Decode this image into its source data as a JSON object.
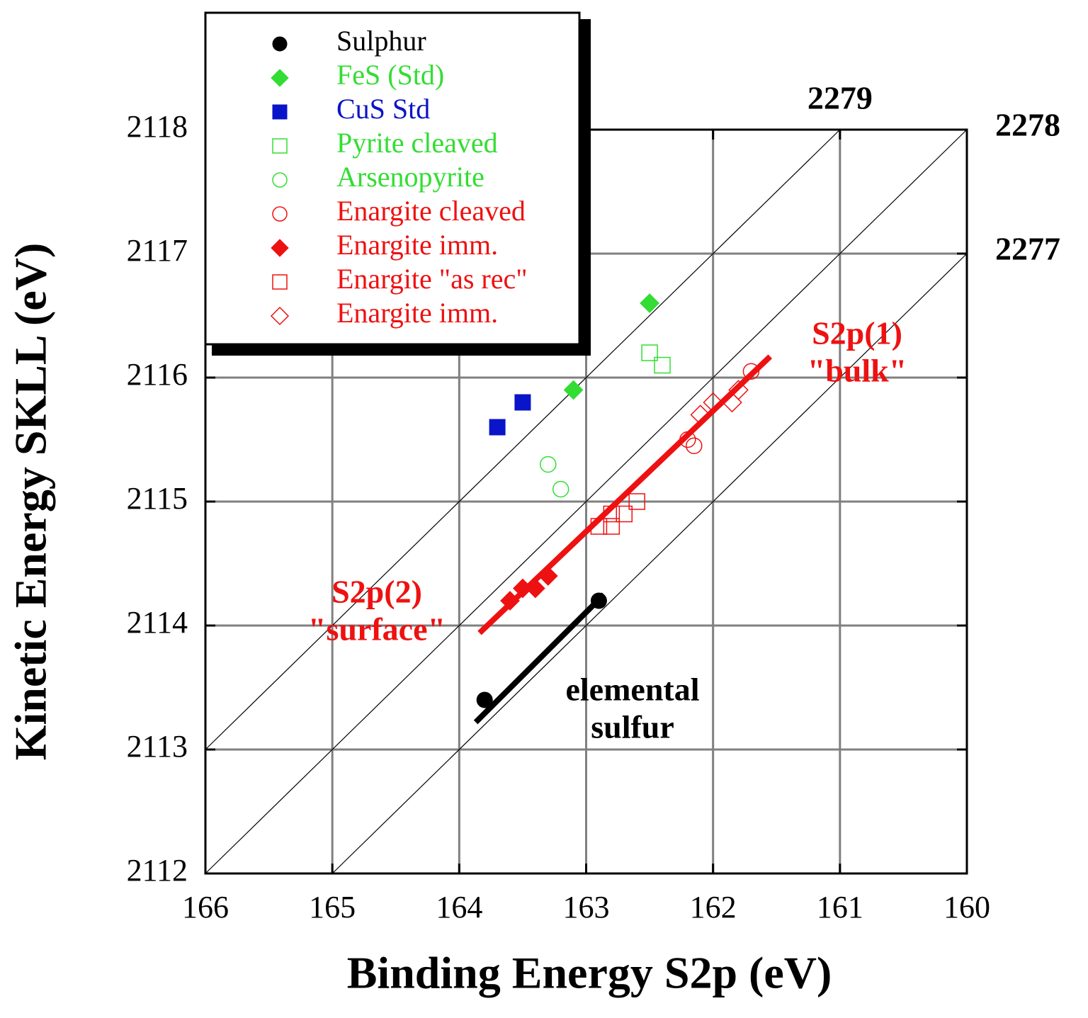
{
  "chart_data": {
    "type": "scatter",
    "x_label": "Binding Energy S2p (eV)",
    "y_label": "Kinetic Energy SKLL (eV)",
    "xlim": [
      166,
      160
    ],
    "ylim": [
      2112,
      2118
    ],
    "xticks": [
      166,
      165,
      164,
      163,
      162,
      161,
      160
    ],
    "yticks": [
      2112,
      2113,
      2114,
      2115,
      2116,
      2117,
      2118
    ],
    "grid": true,
    "legend": "upper left",
    "auger_parameter_lines": [
      2279,
      2278,
      2277
    ],
    "series": [
      {
        "name": "Sulphur",
        "color": "#000000",
        "marker": "circle",
        "filled": true,
        "x": [
          163.8,
          162.9
        ],
        "y": [
          2113.4,
          2114.2
        ]
      },
      {
        "name": "FeS (Std)",
        "color": "#33dd33",
        "marker": "diamond",
        "filled": true,
        "x": [
          162.5,
          163.1
        ],
        "y": [
          2116.6,
          2115.9
        ]
      },
      {
        "name": "CuS Std",
        "color": "#0a14c8",
        "marker": "square",
        "filled": true,
        "x": [
          163.7,
          163.5
        ],
        "y": [
          2115.6,
          2115.8
        ]
      },
      {
        "name": "Pyrite cleaved",
        "color": "#33dd33",
        "marker": "square",
        "filled": false,
        "x": [
          162.5,
          162.4
        ],
        "y": [
          2116.2,
          2116.1
        ]
      },
      {
        "name": "Arsenopyrite",
        "color": "#33dd33",
        "marker": "circle",
        "filled": false,
        "x": [
          163.3,
          163.2
        ],
        "y": [
          2115.3,
          2115.1
        ]
      },
      {
        "name": "Enargite cleaved",
        "color": "#ee1111",
        "marker": "circle",
        "filled": false,
        "x": [
          162.2,
          162.15,
          161.7
        ],
        "y": [
          2115.5,
          2115.45,
          2116.05
        ]
      },
      {
        "name": "Enargite imm.",
        "color": "#ee1111",
        "marker": "diamond",
        "filled": true,
        "x": [
          163.6,
          163.5,
          163.4,
          163.3
        ],
        "y": [
          2114.2,
          2114.3,
          2114.3,
          2114.4
        ]
      },
      {
        "name": "Enargite \"as rec\"",
        "color": "#ee1111",
        "marker": "square",
        "filled": false,
        "x": [
          162.9,
          162.8,
          162.8,
          162.7,
          162.6
        ],
        "y": [
          2114.8,
          2114.8,
          2114.9,
          2114.9,
          2115.0
        ]
      },
      {
        "name": "Enargite imm.",
        "color": "#ee1111",
        "marker": "diamond",
        "filled": false,
        "x": [
          162.1,
          162.0,
          161.85,
          161.8
        ],
        "y": [
          2115.7,
          2115.8,
          2115.8,
          2115.9
        ]
      }
    ],
    "fit_lines": [
      {
        "color": "#ee1111",
        "x": [
          163.84,
          161.55
        ],
        "y": [
          2113.94,
          2116.17
        ]
      },
      {
        "color": "#000000",
        "x": [
          163.87,
          162.86
        ],
        "y": [
          2113.22,
          2114.25
        ]
      }
    ],
    "annotations": [
      {
        "color": "#ee1111",
        "lines": [
          "S2p(1)",
          "\"bulk\""
        ]
      },
      {
        "color": "#ee1111",
        "lines": [
          "S2p(2)",
          "\"surface\""
        ]
      },
      {
        "color": "#000000",
        "lines": [
          "elemental",
          "sulfur"
        ]
      }
    ]
  }
}
